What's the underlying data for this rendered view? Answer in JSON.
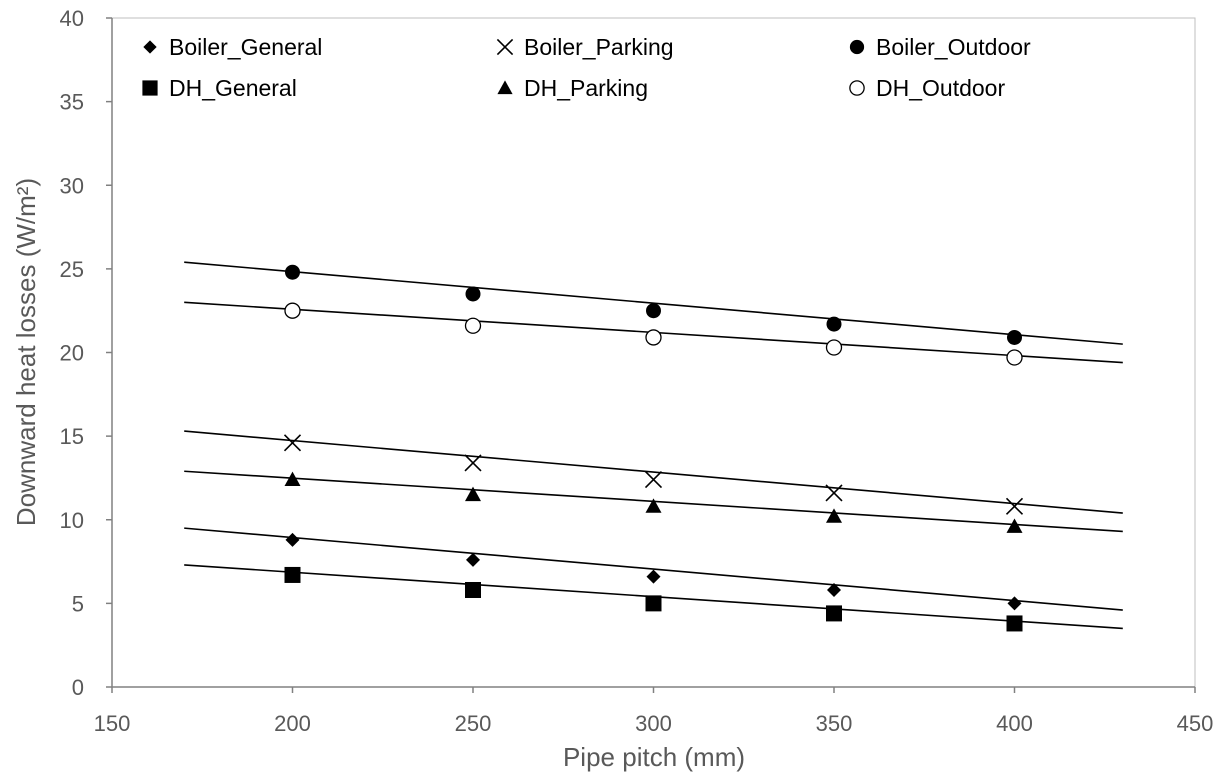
{
  "chart_data": {
    "type": "scatter",
    "xlabel": "Pipe pitch (mm)",
    "ylabel": "Downward heat losses (W/m²)",
    "xlim": [
      150,
      450
    ],
    "ylim": [
      0,
      40
    ],
    "x_ticks": [
      150,
      200,
      250,
      300,
      350,
      400,
      450
    ],
    "y_ticks": [
      0,
      5,
      10,
      15,
      20,
      25,
      30,
      35,
      40
    ],
    "grid": false,
    "legend_position": "top",
    "x": [
      200,
      250,
      300,
      350,
      400
    ],
    "series": [
      {
        "name": "Boiler_General",
        "marker": "diamond",
        "values": [
          8.8,
          7.6,
          6.6,
          5.8,
          5.0
        ],
        "trend": [
          170,
          9.5,
          430,
          4.6
        ]
      },
      {
        "name": "Boiler_Parking",
        "marker": "cross",
        "values": [
          14.6,
          13.4,
          12.4,
          11.6,
          10.8
        ],
        "trend": [
          170,
          15.3,
          430,
          10.4
        ]
      },
      {
        "name": "Boiler_Outdoor",
        "marker": "filled-circle",
        "values": [
          24.8,
          23.5,
          22.5,
          21.7,
          20.9
        ],
        "trend": [
          170,
          25.4,
          430,
          20.5
        ]
      },
      {
        "name": "DH_General",
        "marker": "square",
        "values": [
          6.7,
          5.8,
          5.0,
          4.4,
          3.8
        ],
        "trend": [
          170,
          7.3,
          430,
          3.5
        ]
      },
      {
        "name": "DH_Parking",
        "marker": "triangle",
        "values": [
          12.4,
          11.5,
          10.8,
          10.2,
          9.6
        ],
        "trend": [
          170,
          12.9,
          430,
          9.3
        ]
      },
      {
        "name": "DH_Outdoor",
        "marker": "open-circle",
        "values": [
          22.5,
          21.6,
          20.9,
          20.3,
          19.7
        ],
        "trend": [
          170,
          23.0,
          430,
          19.4
        ]
      }
    ],
    "colors": {
      "marker": "#000000",
      "line": "#000000",
      "axis": "#808080",
      "text": "#595959"
    }
  }
}
